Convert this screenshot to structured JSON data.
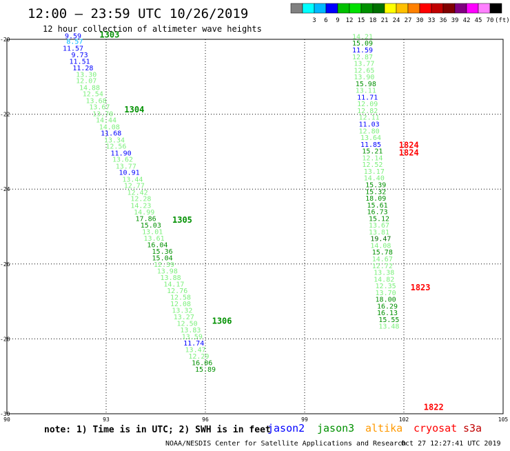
{
  "header": {
    "title": "12:00 – 23:59 UTC 10/26/2019",
    "subtitle": "12 hour collection of altimeter wave heights"
  },
  "legend": {
    "unit": "(ft)",
    "swatches": [
      {
        "label": "",
        "color": "#808080"
      },
      {
        "label": "3",
        "color": "#00ffff"
      },
      {
        "label": "6",
        "color": "#00b8ff"
      },
      {
        "label": "9",
        "color": "#0000ff"
      },
      {
        "label": "12",
        "color": "#00c000"
      },
      {
        "label": "15",
        "color": "#00e000"
      },
      {
        "label": "18",
        "color": "#009000"
      },
      {
        "label": "21",
        "color": "#007000"
      },
      {
        "label": "24",
        "color": "#ffff00"
      },
      {
        "label": "27",
        "color": "#ffc000"
      },
      {
        "label": "30",
        "color": "#ff8000"
      },
      {
        "label": "33",
        "color": "#ff0000"
      },
      {
        "label": "36",
        "color": "#c00000"
      },
      {
        "label": "39",
        "color": "#800000"
      },
      {
        "label": "42",
        "color": "#800080"
      },
      {
        "label": "45",
        "color": "#ff00ff"
      },
      {
        "label": "70",
        "color": "#ff80ff"
      },
      {
        "label": "",
        "color": "#000000"
      }
    ]
  },
  "footer": {
    "note": "note: 1) Time is in UTC; 2) SWH is in feet",
    "satellites": [
      {
        "name": "jason2",
        "color": "#0000ff"
      },
      {
        "name": "jason3",
        "color": "#009000"
      },
      {
        "name": "altika",
        "color": "#ff9900"
      },
      {
        "name": "cryosat",
        "color": "#ff0000"
      },
      {
        "name": "s3a",
        "color": "#c00000"
      }
    ],
    "credit": "NOAA/NESDIS Center for Satellite Applications and Research",
    "timestamp": "Oct 27 12:27:41 UTC 2019"
  },
  "chart_data": {
    "type": "scatter",
    "xlim": [
      90,
      105
    ],
    "ylim": [
      -30,
      -20
    ],
    "x_ticks": [
      "90",
      "93",
      "96",
      "99",
      "102",
      "105"
    ],
    "y_ticks": [
      "-20",
      "-22",
      "-24",
      "-26",
      "-28",
      "-30"
    ],
    "grid": "dotted",
    "track_labels": [
      {
        "text": "1303",
        "lon": 92.8,
        "lat": -19.95,
        "color": "#009000"
      },
      {
        "text": "1304",
        "lon": 93.55,
        "lat": -21.95,
        "color": "#009000"
      },
      {
        "text": "1305",
        "lon": 95.0,
        "lat": -24.9,
        "color": "#009000"
      },
      {
        "text": "1306",
        "lon": 96.2,
        "lat": -27.6,
        "color": "#009000"
      },
      {
        "text": "1824",
        "lon": 101.85,
        "lat": -22.9,
        "color": "#ff0000"
      },
      {
        "text": "1824",
        "lon": 101.85,
        "lat": -23.1,
        "color": "#ff0000"
      },
      {
        "text": "1823",
        "lon": 102.2,
        "lat": -26.7,
        "color": "#ff0000"
      },
      {
        "text": "1822",
        "lon": 102.6,
        "lat": -29.9,
        "color": "#ff0000"
      }
    ],
    "series": [
      {
        "name": "jason3",
        "points": [
          {
            "v": "9.59",
            "lon": 92.0,
            "lat": -19.97,
            "c": "#0000ff"
          },
          {
            "v": "8.57",
            "lon": 92.05,
            "lat": -20.12,
            "c": "#00b8ff"
          },
          {
            "v": "11.57",
            "lon": 92.0,
            "lat": -20.3,
            "c": "#0000ff"
          },
          {
            "v": "9.73",
            "lon": 92.2,
            "lat": -20.48,
            "c": "#0000ff"
          },
          {
            "v": "11.51",
            "lon": 92.2,
            "lat": -20.65,
            "c": "#0000ff"
          },
          {
            "v": "11.28",
            "lon": 92.3,
            "lat": -20.83,
            "c": "#0000ff"
          },
          {
            "v": "13.30",
            "lon": 92.4,
            "lat": -21.0,
            "c": "#7cf07c"
          },
          {
            "v": "12.07",
            "lon": 92.4,
            "lat": -21.17,
            "c": "#7cf07c"
          },
          {
            "v": "14.88",
            "lon": 92.5,
            "lat": -21.35,
            "c": "#7cf07c"
          },
          {
            "v": "12.54",
            "lon": 92.6,
            "lat": -21.52,
            "c": "#7cf07c"
          },
          {
            "v": "13.68",
            "lon": 92.7,
            "lat": -21.7,
            "c": "#7cf07c"
          },
          {
            "v": "13.67",
            "lon": 92.8,
            "lat": -21.87,
            "c": "#7cf07c"
          },
          {
            "v": "13.70",
            "lon": 92.9,
            "lat": -22.05,
            "c": "#7cf07c"
          },
          {
            "v": "14.44",
            "lon": 93.0,
            "lat": -22.22,
            "c": "#7cf07c"
          },
          {
            "v": "14.08",
            "lon": 93.1,
            "lat": -22.4,
            "c": "#7cf07c"
          },
          {
            "v": "11.68",
            "lon": 93.15,
            "lat": -22.57,
            "c": "#0000ff"
          },
          {
            "v": "13.34",
            "lon": 93.25,
            "lat": -22.75,
            "c": "#7cf07c"
          },
          {
            "v": "12.56",
            "lon": 93.3,
            "lat": -22.92,
            "c": "#7cf07c"
          },
          {
            "v": "11.90",
            "lon": 93.45,
            "lat": -23.1,
            "c": "#0000ff"
          },
          {
            "v": "13.62",
            "lon": 93.5,
            "lat": -23.27,
            "c": "#7cf07c"
          },
          {
            "v": "13.77",
            "lon": 93.6,
            "lat": -23.45,
            "c": "#7cf07c"
          },
          {
            "v": "10.91",
            "lon": 93.7,
            "lat": -23.62,
            "c": "#0000ff"
          },
          {
            "v": "13.44",
            "lon": 93.8,
            "lat": -23.8,
            "c": "#7cf07c"
          },
          {
            "v": "12.77",
            "lon": 93.85,
            "lat": -23.97,
            "c": "#7cf07c"
          },
          {
            "v": "12.42",
            "lon": 93.95,
            "lat": -24.15,
            "c": "#7cf07c"
          },
          {
            "v": "12.28",
            "lon": 94.05,
            "lat": -24.32,
            "c": "#7cf07c"
          },
          {
            "v": "14.23",
            "lon": 94.05,
            "lat": -24.5,
            "c": "#7cf07c"
          },
          {
            "v": "14.99",
            "lon": 94.15,
            "lat": -24.68,
            "c": "#7cf07c"
          },
          {
            "v": "17.86",
            "lon": 94.2,
            "lat": -24.85,
            "c": "#009000"
          },
          {
            "v": "15.03",
            "lon": 94.35,
            "lat": -25.03,
            "c": "#009000"
          },
          {
            "v": "13.01",
            "lon": 94.4,
            "lat": -25.2,
            "c": "#7cf07c"
          },
          {
            "v": "13.61",
            "lon": 94.45,
            "lat": -25.38,
            "c": "#7cf07c"
          },
          {
            "v": "16.04",
            "lon": 94.55,
            "lat": -25.55,
            "c": "#009000"
          },
          {
            "v": "15.36",
            "lon": 94.7,
            "lat": -25.73,
            "c": "#009000"
          },
          {
            "v": "15.04",
            "lon": 94.7,
            "lat": -25.9,
            "c": "#009000"
          },
          {
            "v": "12.39",
            "lon": 94.75,
            "lat": -26.08,
            "c": "#7cf07c"
          },
          {
            "v": "13.98",
            "lon": 94.85,
            "lat": -26.25,
            "c": "#7cf07c"
          },
          {
            "v": "13.88",
            "lon": 94.95,
            "lat": -26.43,
            "c": "#7cf07c"
          },
          {
            "v": "14.17",
            "lon": 95.05,
            "lat": -26.6,
            "c": "#7cf07c"
          },
          {
            "v": "12.76",
            "lon": 95.15,
            "lat": -26.78,
            "c": "#7cf07c"
          },
          {
            "v": "12.58",
            "lon": 95.25,
            "lat": -26.95,
            "c": "#7cf07c"
          },
          {
            "v": "12.08",
            "lon": 95.25,
            "lat": -27.13,
            "c": "#7cf07c"
          },
          {
            "v": "13.32",
            "lon": 95.3,
            "lat": -27.3,
            "c": "#7cf07c"
          },
          {
            "v": "13.27",
            "lon": 95.35,
            "lat": -27.48,
            "c": "#7cf07c"
          },
          {
            "v": "12.50",
            "lon": 95.45,
            "lat": -27.65,
            "c": "#7cf07c"
          },
          {
            "v": "13.83",
            "lon": 95.55,
            "lat": -27.83,
            "c": "#7cf07c"
          },
          {
            "v": "13.59",
            "lon": 95.6,
            "lat": -28.0,
            "c": "#7cf07c"
          },
          {
            "v": "11.74",
            "lon": 95.65,
            "lat": -28.18,
            "c": "#0000ff"
          },
          {
            "v": "13.47",
            "lon": 95.7,
            "lat": -28.35,
            "c": "#7cf07c"
          },
          {
            "v": "12.29",
            "lon": 95.8,
            "lat": -28.53,
            "c": "#7cf07c"
          },
          {
            "v": "16.06",
            "lon": 95.9,
            "lat": -28.7,
            "c": "#009000"
          },
          {
            "v": "15.89",
            "lon": 96.0,
            "lat": -28.88,
            "c": "#009000"
          }
        ]
      },
      {
        "name": "cryosat",
        "points": [
          {
            "v": "14.21",
            "lon": 100.75,
            "lat": -19.99,
            "c": "#7cf07c"
          },
          {
            "v": "15.09",
            "lon": 100.75,
            "lat": -20.17,
            "c": "#009000"
          },
          {
            "v": "11.59",
            "lon": 100.75,
            "lat": -20.35,
            "c": "#0000ff"
          },
          {
            "v": "12.87",
            "lon": 100.75,
            "lat": -20.53,
            "c": "#7cf07c"
          },
          {
            "v": "13.77",
            "lon": 100.8,
            "lat": -20.71,
            "c": "#7cf07c"
          },
          {
            "v": "12.65",
            "lon": 100.8,
            "lat": -20.89,
            "c": "#7cf07c"
          },
          {
            "v": "13.90",
            "lon": 100.8,
            "lat": -21.07,
            "c": "#7cf07c"
          },
          {
            "v": "15.98",
            "lon": 100.85,
            "lat": -21.25,
            "c": "#009000"
          },
          {
            "v": "13.11",
            "lon": 100.85,
            "lat": -21.43,
            "c": "#7cf07c"
          },
          {
            "v": "11.71",
            "lon": 100.9,
            "lat": -21.61,
            "c": "#0000ff"
          },
          {
            "v": "12.09",
            "lon": 100.9,
            "lat": -21.79,
            "c": "#7cf07c"
          },
          {
            "v": "12.82",
            "lon": 100.9,
            "lat": -21.97,
            "c": "#7cf07c"
          },
          {
            "v": "12.11",
            "lon": 100.95,
            "lat": -22.15,
            "c": "#7cf07c"
          },
          {
            "v": "11.03",
            "lon": 100.95,
            "lat": -22.33,
            "c": "#0000ff"
          },
          {
            "v": "12.80",
            "lon": 100.95,
            "lat": -22.51,
            "c": "#7cf07c"
          },
          {
            "v": "13.64",
            "lon": 101.0,
            "lat": -22.69,
            "c": "#7cf07c"
          },
          {
            "v": "11.85",
            "lon": 101.0,
            "lat": -22.87,
            "c": "#0000ff"
          },
          {
            "v": "15.21",
            "lon": 101.05,
            "lat": -23.05,
            "c": "#009000"
          },
          {
            "v": "12.14",
            "lon": 101.05,
            "lat": -23.23,
            "c": "#7cf07c"
          },
          {
            "v": "12.52",
            "lon": 101.05,
            "lat": -23.41,
            "c": "#7cf07c"
          },
          {
            "v": "13.17",
            "lon": 101.1,
            "lat": -23.59,
            "c": "#7cf07c"
          },
          {
            "v": "14.40",
            "lon": 101.1,
            "lat": -23.77,
            "c": "#7cf07c"
          },
          {
            "v": "15.39",
            "lon": 101.15,
            "lat": -23.95,
            "c": "#009000"
          },
          {
            "v": "15.32",
            "lon": 101.15,
            "lat": -24.13,
            "c": "#009000"
          },
          {
            "v": "18.09",
            "lon": 101.15,
            "lat": -24.31,
            "c": "#009000"
          },
          {
            "v": "15.61",
            "lon": 101.2,
            "lat": -24.49,
            "c": "#009000"
          },
          {
            "v": "16.73",
            "lon": 101.2,
            "lat": -24.67,
            "c": "#009000"
          },
          {
            "v": "15.12",
            "lon": 101.25,
            "lat": -24.85,
            "c": "#009000"
          },
          {
            "v": "13.67",
            "lon": 101.25,
            "lat": -25.03,
            "c": "#7cf07c"
          },
          {
            "v": "13.81",
            "lon": 101.25,
            "lat": -25.21,
            "c": "#7cf07c"
          },
          {
            "v": "19.47",
            "lon": 101.3,
            "lat": -25.39,
            "c": "#007000"
          },
          {
            "v": "14.08",
            "lon": 101.3,
            "lat": -25.57,
            "c": "#7cf07c"
          },
          {
            "v": "15.78",
            "lon": 101.35,
            "lat": -25.75,
            "c": "#009000"
          },
          {
            "v": "14.67",
            "lon": 101.35,
            "lat": -25.93,
            "c": "#7cf07c"
          },
          {
            "v": "12.72",
            "lon": 101.35,
            "lat": -26.11,
            "c": "#7cf07c"
          },
          {
            "v": "13.38",
            "lon": 101.4,
            "lat": -26.29,
            "c": "#7cf07c"
          },
          {
            "v": "14.82",
            "lon": 101.4,
            "lat": -26.47,
            "c": "#7cf07c"
          },
          {
            "v": "12.35",
            "lon": 101.45,
            "lat": -26.65,
            "c": "#7cf07c"
          },
          {
            "v": "13.70",
            "lon": 101.45,
            "lat": -26.83,
            "c": "#7cf07c"
          },
          {
            "v": "18.00",
            "lon": 101.45,
            "lat": -27.01,
            "c": "#009000"
          },
          {
            "v": "16.29",
            "lon": 101.5,
            "lat": -27.19,
            "c": "#009000"
          },
          {
            "v": "16.13",
            "lon": 101.5,
            "lat": -27.37,
            "c": "#009000"
          },
          {
            "v": "15.55",
            "lon": 101.55,
            "lat": -27.55,
            "c": "#009000"
          },
          {
            "v": "13.48",
            "lon": 101.55,
            "lat": -27.73,
            "c": "#7cf07c"
          }
        ]
      }
    ]
  }
}
